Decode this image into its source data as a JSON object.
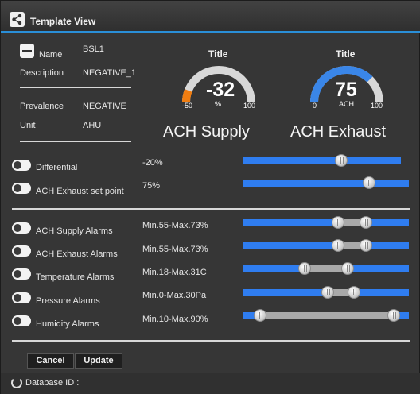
{
  "window": {
    "title": "Template View"
  },
  "info": {
    "name_label": "Name",
    "name_value": "BSL1",
    "description_label": "Description",
    "description_value": "NEGATIVE_1",
    "prevalence_label": "Prevalence",
    "prevalence_value": "NEGATIVE",
    "unit_label": "Unit",
    "unit_value": "AHU"
  },
  "gauges": [
    {
      "title": "Title",
      "value": "-32",
      "unit": "%",
      "min": "-50",
      "max": "100",
      "caption": "ACH Supply",
      "fraction": 0.12,
      "color": "#f07d10"
    },
    {
      "title": "Title",
      "value": "75",
      "unit": "ACH",
      "min": "0",
      "max": "100",
      "caption": "ACH Exhaust",
      "fraction": 0.75,
      "color": "#3a86e8"
    }
  ],
  "setpoints": [
    {
      "label": "Differential",
      "value": "-20%",
      "position": 0.62
    },
    {
      "label": "ACH Exhaust set point",
      "value": "75%",
      "position": 0.76
    }
  ],
  "alarms": [
    {
      "label": "ACH Supply Alarms",
      "value": "Min.55-Max.73%",
      "low": 0.57,
      "high": 0.74
    },
    {
      "label": "ACH Exhaust Alarms",
      "value": "Min.55-Max.73%",
      "low": 0.57,
      "high": 0.74
    },
    {
      "label": "Temperature Alarms",
      "value": "Min.18-Max.31C",
      "low": 0.37,
      "high": 0.63
    },
    {
      "label": "Pressure Alarms",
      "value": "Min.0-Max.30Pa",
      "low": 0.51,
      "high": 0.67
    },
    {
      "label": "Humidity Alarms",
      "value": "Min.10-Max.90%",
      "low": 0.1,
      "high": 0.91
    }
  ],
  "buttons": {
    "cancel": "Cancel",
    "update": "Update"
  },
  "footer": {
    "database_label": "Database ID :"
  },
  "icons": {
    "title": "share-icon",
    "collapse": "minus-icon",
    "footer": "spinner-icon"
  },
  "colors": {
    "accent": "#2a8fd8",
    "track": "#2f7df0",
    "gauge_orange": "#f07d10",
    "gauge_blue": "#3a86e8"
  }
}
